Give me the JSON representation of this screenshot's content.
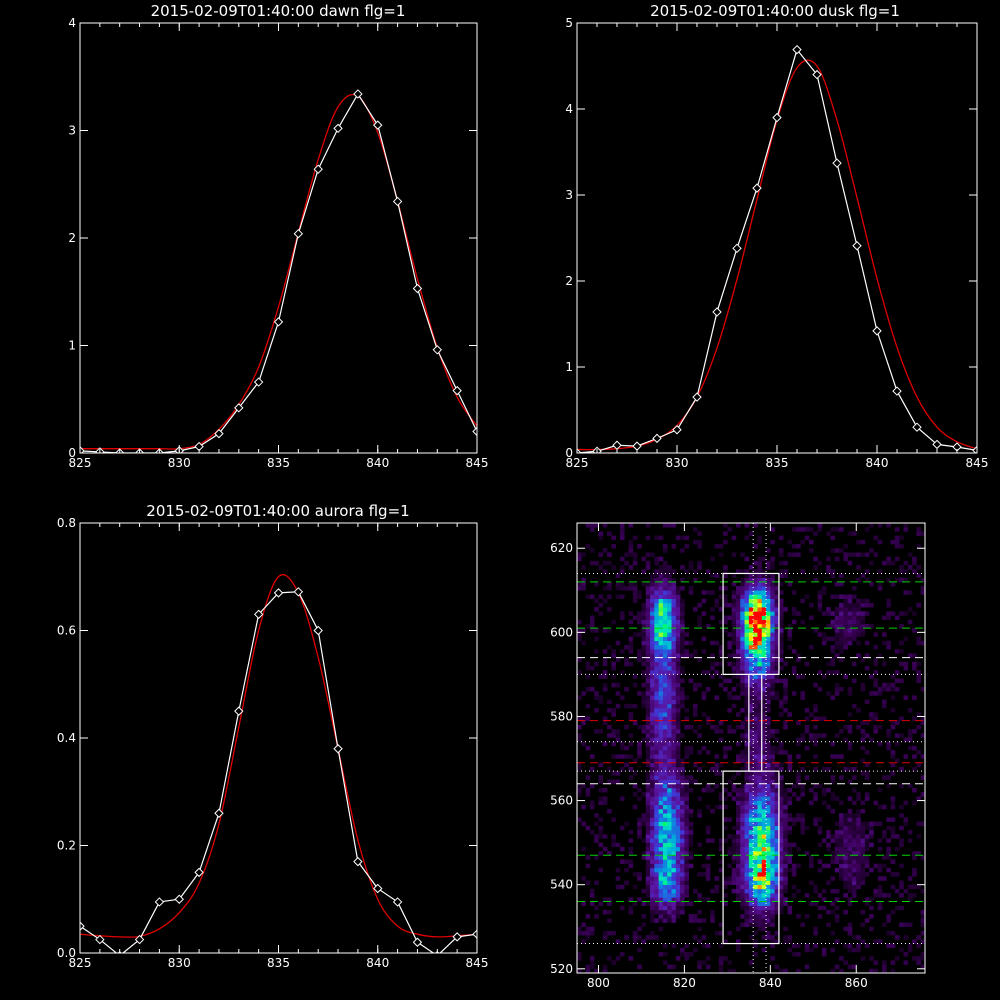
{
  "colors": {
    "background": "#000000",
    "axes": "#ffffff",
    "measured": "#ffffff",
    "fit": "#e00000",
    "guide_green": "#00d000",
    "guide_white": "#ffffff",
    "guide_red": "#e00000",
    "heatmap_scale": [
      "#000000",
      "#3c005a",
      "#5a14a0",
      "#3c3cdc",
      "#009be1",
      "#00e0c8",
      "#00ff64",
      "#ffff00",
      "#ff0000"
    ]
  },
  "chart_data": [
    {
      "type": "line",
      "title": "2015-02-09T01:40:00 dawn flg=1",
      "xlim": [
        825,
        845
      ],
      "ylim": [
        0,
        4
      ],
      "xticks": [
        "825",
        "830",
        "835",
        "840",
        "845"
      ],
      "yticks": [
        "0",
        "1",
        "2",
        "3",
        "4"
      ],
      "marker": "diamond",
      "series": [
        {
          "role": "measured",
          "x": [
            825,
            826,
            827,
            828,
            829,
            830,
            831,
            832,
            833,
            834,
            835,
            836,
            837,
            838,
            839,
            840,
            841,
            842,
            843,
            844,
            845
          ],
          "y": [
            0.02,
            0.01,
            0.0,
            0.0,
            0.0,
            0.02,
            0.06,
            0.18,
            0.42,
            0.66,
            1.22,
            2.04,
            2.64,
            3.02,
            3.34,
            3.05,
            2.34,
            1.53,
            0.96,
            0.58,
            0.2
          ]
        },
        {
          "role": "fit",
          "x": [
            825,
            826,
            827,
            828,
            829,
            830,
            831,
            832,
            833,
            834,
            835,
            836,
            837,
            838,
            839,
            840,
            841,
            842,
            843,
            844,
            845
          ],
          "y": [
            0.04,
            0.04,
            0.04,
            0.04,
            0.04,
            0.04,
            0.08,
            0.22,
            0.45,
            0.8,
            1.36,
            2.05,
            2.73,
            3.22,
            3.32,
            2.98,
            2.34,
            1.62,
            0.98,
            0.52,
            0.25
          ]
        }
      ]
    },
    {
      "type": "line",
      "title": "2015-02-09T01:40:00 dusk flg=1",
      "xlim": [
        825,
        845
      ],
      "ylim": [
        0,
        5
      ],
      "xticks": [
        "825",
        "830",
        "835",
        "840",
        "845"
      ],
      "yticks": [
        "0",
        "1",
        "2",
        "3",
        "4",
        "5"
      ],
      "marker": "diamond",
      "series": [
        {
          "role": "measured",
          "x": [
            825,
            826,
            827,
            828,
            829,
            830,
            831,
            832,
            833,
            834,
            835,
            836,
            837,
            838,
            839,
            840,
            841,
            842,
            843,
            844,
            845
          ],
          "y": [
            0.0,
            0.02,
            0.09,
            0.08,
            0.17,
            0.27,
            0.65,
            1.64,
            2.38,
            3.08,
            3.9,
            4.69,
            4.4,
            3.37,
            2.41,
            1.42,
            0.72,
            0.3,
            0.1,
            0.07,
            0.03
          ]
        },
        {
          "role": "fit",
          "x": [
            825,
            826,
            827,
            828,
            829,
            830,
            831,
            832,
            833,
            834,
            835,
            836,
            837,
            838,
            839,
            840,
            841,
            842,
            843,
            844,
            845
          ],
          "y": [
            0.04,
            0.04,
            0.05,
            0.08,
            0.16,
            0.32,
            0.65,
            1.22,
            2.02,
            2.95,
            3.87,
            4.48,
            4.5,
            3.87,
            2.97,
            2.03,
            1.23,
            0.65,
            0.3,
            0.13,
            0.05
          ]
        }
      ]
    },
    {
      "type": "line",
      "title": "2015-02-09T01:40:00 aurora flg=1",
      "xlim": [
        825,
        845
      ],
      "ylim": [
        0,
        0.8
      ],
      "xticks": [
        "825",
        "830",
        "835",
        "840",
        "845"
      ],
      "yticks": [
        "0.0",
        "0.2",
        "0.4",
        "0.6",
        "0.8"
      ],
      "marker": "diamond",
      "series": [
        {
          "role": "measured",
          "x": [
            825,
            826,
            827,
            828,
            829,
            830,
            831,
            832,
            833,
            834,
            835,
            836,
            837,
            838,
            839,
            840,
            841,
            842,
            843,
            844,
            845
          ],
          "y": [
            0.05,
            0.025,
            -0.005,
            0.025,
            0.095,
            0.1,
            0.15,
            0.26,
            0.45,
            0.63,
            0.67,
            0.672,
            0.6,
            0.38,
            0.17,
            0.12,
            0.095,
            0.02,
            -0.005,
            0.03,
            0.035
          ]
        },
        {
          "role": "fit",
          "x": [
            825,
            826,
            827,
            828,
            829,
            830,
            831,
            832,
            833,
            834,
            835,
            836,
            837,
            838,
            839,
            840,
            841,
            842,
            843,
            844,
            845
          ],
          "y": [
            0.035,
            0.032,
            0.03,
            0.031,
            0.045,
            0.075,
            0.13,
            0.24,
            0.42,
            0.6,
            0.7,
            0.67,
            0.55,
            0.38,
            0.21,
            0.1,
            0.05,
            0.035,
            0.03,
            0.032,
            0.035
          ]
        }
      ]
    },
    {
      "type": "heatmap",
      "title": "",
      "xlim": [
        795,
        876
      ],
      "ylim": [
        519,
        626
      ],
      "xticks": [
        "800",
        "820",
        "840",
        "860"
      ],
      "yticks": [
        "520",
        "540",
        "560",
        "580",
        "600",
        "620"
      ],
      "sources": [
        {
          "x": 815,
          "y": 603,
          "sx": 2.2,
          "sy": 5,
          "amp": 0.62
        },
        {
          "x": 815,
          "y": 585,
          "sx": 2.2,
          "sy": 12,
          "amp": 0.35
        },
        {
          "x": 816,
          "y": 552,
          "sx": 2.5,
          "sy": 9,
          "amp": 0.55
        },
        {
          "x": 816,
          "y": 540,
          "sx": 2.2,
          "sy": 3.5,
          "amp": 0.35
        },
        {
          "x": 837,
          "y": 604,
          "sx": 2.3,
          "sy": 4.5,
          "amp": 1.0
        },
        {
          "x": 837,
          "y": 596,
          "sx": 2.5,
          "sy": 6,
          "amp": 0.55
        },
        {
          "x": 838,
          "y": 550,
          "sx": 2.8,
          "sy": 9,
          "amp": 0.72
        },
        {
          "x": 838,
          "y": 541,
          "sx": 2.3,
          "sy": 3.5,
          "amp": 0.4
        },
        {
          "x": 837,
          "y": 575,
          "sx": 2.5,
          "sy": 6,
          "amp": 0.12
        },
        {
          "x": 858,
          "y": 602,
          "sx": 2.5,
          "sy": 4,
          "amp": 0.14
        },
        {
          "x": 859,
          "y": 548,
          "sx": 3,
          "sy": 7,
          "amp": 0.13
        }
      ],
      "boxes": [
        {
          "x0": 829,
          "x1": 842,
          "y0": 590,
          "y1": 614
        },
        {
          "x0": 829,
          "x1": 842,
          "y0": 526,
          "y1": 567
        }
      ],
      "corridor": {
        "x0": 835,
        "x1": 838,
        "y0": 567,
        "y1": 590
      },
      "vertical_dotted": [
        836,
        839
      ],
      "horizontal_lines": [
        {
          "y": 612,
          "style": "dashed",
          "color": "green"
        },
        {
          "y": 601,
          "style": "dashed",
          "color": "green"
        },
        {
          "y": 594,
          "style": "dashed",
          "color": "white"
        },
        {
          "y": 579,
          "style": "dashed",
          "color": "red"
        },
        {
          "y": 569,
          "style": "dashed",
          "color": "red"
        },
        {
          "y": 564,
          "style": "dashed",
          "color": "white"
        },
        {
          "y": 547,
          "style": "dashed",
          "color": "green"
        },
        {
          "y": 536,
          "style": "dashed",
          "color": "green"
        },
        {
          "y": 614,
          "style": "dotted",
          "color": "white"
        },
        {
          "y": 590,
          "style": "dotted",
          "color": "white"
        },
        {
          "y": 574,
          "style": "dotted",
          "color": "white"
        },
        {
          "y": 567,
          "style": "dotted",
          "color": "white"
        },
        {
          "y": 526,
          "style": "dotted",
          "color": "white"
        }
      ]
    }
  ]
}
